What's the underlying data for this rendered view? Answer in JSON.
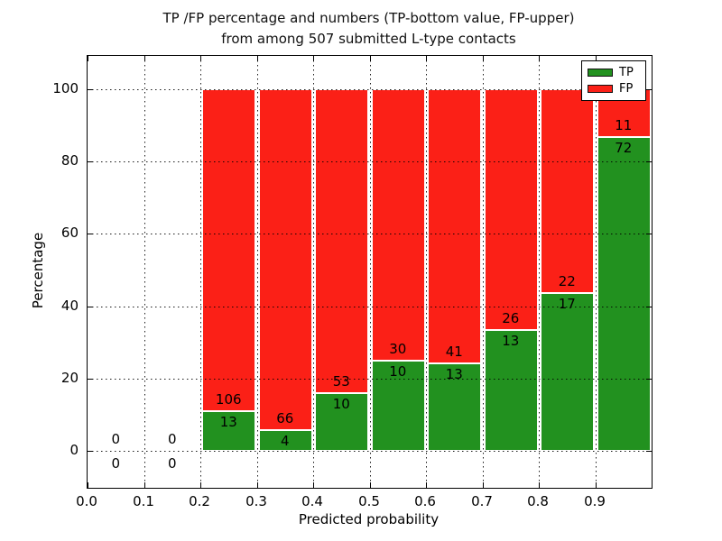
{
  "title": {
    "line1": "TP /FP percentage and numbers (TP-bottom value, FP-upper)",
    "line2": "from among 507 submitted L-type contacts"
  },
  "axes": {
    "x_label": "Predicted probability",
    "y_label": "Percentage",
    "x_tick_labels": [
      "0.0",
      "0.1",
      "0.2",
      "0.3",
      "0.4",
      "0.5",
      "0.6",
      "0.7",
      "0.8",
      "0.9"
    ],
    "x_tick_values": [
      0.0,
      0.1,
      0.2,
      0.3,
      0.4,
      0.5,
      0.6,
      0.7,
      0.8,
      0.9
    ],
    "y_tick_labels": [
      "0",
      "20",
      "40",
      "60",
      "80",
      "100"
    ],
    "y_tick_values": [
      0,
      20,
      40,
      60,
      80,
      100
    ],
    "grid": "dotted black, horizontal lines drawn over bars, vertical at bin edges"
  },
  "legend": {
    "position": "upper right",
    "items": [
      {
        "label": "TP",
        "color": "#22911f"
      },
      {
        "label": "FP",
        "color": "#fb2017"
      }
    ]
  },
  "colors": {
    "tp": "#22911f",
    "fp": "#fb2017",
    "bar_edge": "#ffffff",
    "grid": "#000000",
    "background": "#ffffff"
  },
  "chart_data": {
    "type": "bar",
    "stacked": true,
    "normalized": "each non-empty bin stacks TP%+FP% to 100",
    "title": "TP /FP percentage and numbers (TP-bottom value, FP-upper) from among 507 submitted L-type contacts",
    "xlabel": "Predicted probability",
    "ylabel": "Percentage",
    "total_contacts": 507,
    "bin_width": 0.1,
    "x_range": [
      0.0,
      1.0
    ],
    "ylim_pct": [
      -10.2,
      109.2
    ],
    "annotation_rule": "FP count printed above TP/FP boundary, TP count below; empty bins show 0 above and below the zero line",
    "series_names": [
      "TP",
      "FP"
    ],
    "bins": [
      {
        "x_start": 0.0,
        "tp_count": 0,
        "fp_count": 0,
        "tp_percent": null
      },
      {
        "x_start": 0.1,
        "tp_count": 0,
        "fp_count": 0,
        "tp_percent": null
      },
      {
        "x_start": 0.2,
        "tp_count": 13,
        "fp_count": 106,
        "tp_percent": 10.9
      },
      {
        "x_start": 0.3,
        "tp_count": 4,
        "fp_count": 66,
        "tp_percent": 5.7
      },
      {
        "x_start": 0.4,
        "tp_count": 10,
        "fp_count": 53,
        "tp_percent": 15.9
      },
      {
        "x_start": 0.5,
        "tp_count": 10,
        "fp_count": 30,
        "tp_percent": 25.0
      },
      {
        "x_start": 0.6,
        "tp_count": 13,
        "fp_count": 41,
        "tp_percent": 24.1
      },
      {
        "x_start": 0.7,
        "tp_count": 13,
        "fp_count": 26,
        "tp_percent": 33.3
      },
      {
        "x_start": 0.8,
        "tp_count": 17,
        "fp_count": 22,
        "tp_percent": 43.6
      },
      {
        "x_start": 0.9,
        "tp_count": 72,
        "fp_count": 11,
        "tp_percent": 86.7
      }
    ]
  }
}
